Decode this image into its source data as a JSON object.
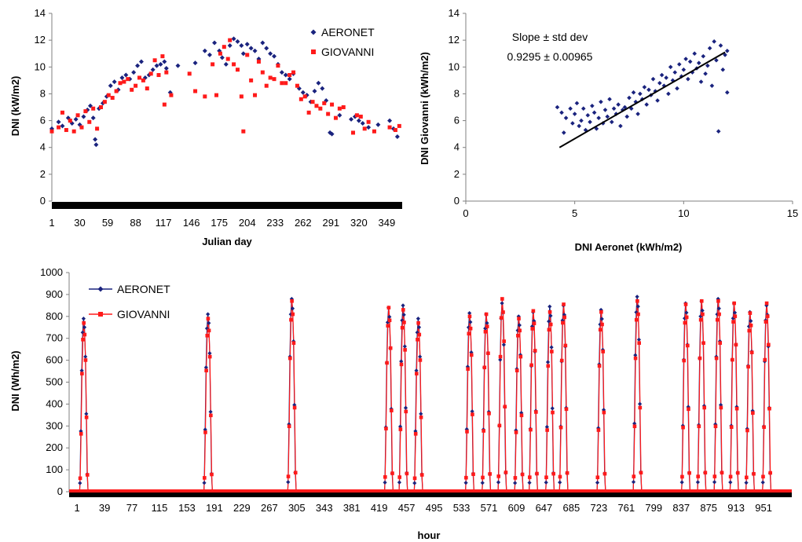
{
  "chart_data": [
    {
      "type": "scatter",
      "xlabel": "Julian day",
      "ylabel": "DNI (kW/m2)",
      "ylim": [
        0,
        14
      ],
      "yticks": [
        0,
        2,
        4,
        6,
        8,
        10,
        12,
        14
      ],
      "xticks": [
        1,
        30,
        59,
        88,
        117,
        146,
        175,
        204,
        233,
        262,
        291,
        320,
        349
      ],
      "xlim": [
        1,
        365
      ],
      "legend_position": "top-right",
      "colors": {
        "AERONET": "#1a237e",
        "GIOVANNI": "#ff1a1a"
      },
      "series": [
        {
          "name": "AERONET",
          "marker": "diamond",
          "points": [
            [
              1,
              5.4
            ],
            [
              8,
              5.9
            ],
            [
              12,
              5.6
            ],
            [
              18,
              6.2
            ],
            [
              22,
              5.8
            ],
            [
              26,
              6.1
            ],
            [
              30,
              5.7
            ],
            [
              34,
              6.3
            ],
            [
              38,
              6.8
            ],
            [
              41,
              7.1
            ],
            [
              44,
              6.2
            ],
            [
              46,
              4.6
            ],
            [
              47,
              4.2
            ],
            [
              50,
              6.9
            ],
            [
              54,
              7.3
            ],
            [
              58,
              7.8
            ],
            [
              62,
              8.6
            ],
            [
              66,
              8.9
            ],
            [
              70,
              8.3
            ],
            [
              74,
              9.2
            ],
            [
              78,
              9.4
            ],
            [
              82,
              9.1
            ],
            [
              86,
              9.6
            ],
            [
              90,
              10.1
            ],
            [
              94,
              10.4
            ],
            [
              98,
              9.2
            ],
            [
              102,
              9.4
            ],
            [
              106,
              9.8
            ],
            [
              110,
              10.1
            ],
            [
              114,
              10.2
            ],
            [
              118,
              10.4
            ],
            [
              120,
              9.9
            ],
            [
              124,
              8.1
            ],
            [
              132,
              10.1
            ],
            [
              150,
              10.3
            ],
            [
              160,
              11.2
            ],
            [
              165,
              10.9
            ],
            [
              170,
              11.8
            ],
            [
              175,
              11.2
            ],
            [
              178,
              10.7
            ],
            [
              182,
              10.2
            ],
            [
              186,
              11.6
            ],
            [
              190,
              12.1
            ],
            [
              194,
              11.9
            ],
            [
              198,
              11.6
            ],
            [
              200,
              11.0
            ],
            [
              204,
              11.7
            ],
            [
              208,
              11.4
            ],
            [
              212,
              11.2
            ],
            [
              216,
              10.6
            ],
            [
              220,
              11.8
            ],
            [
              224,
              11.4
            ],
            [
              228,
              11.0
            ],
            [
              232,
              10.8
            ],
            [
              236,
              10.2
            ],
            [
              240,
              9.6
            ],
            [
              244,
              9.4
            ],
            [
              248,
              9.1
            ],
            [
              252,
              9.5
            ],
            [
              258,
              8.4
            ],
            [
              262,
              8.1
            ],
            [
              266,
              7.9
            ],
            [
              270,
              7.4
            ],
            [
              274,
              8.2
            ],
            [
              278,
              8.8
            ],
            [
              282,
              8.4
            ],
            [
              286,
              7.5
            ],
            [
              290,
              5.1
            ],
            [
              292,
              5.0
            ],
            [
              300,
              6.4
            ],
            [
              312,
              6.1
            ],
            [
              316,
              6.3
            ],
            [
              320,
              6.0
            ],
            [
              324,
              5.8
            ],
            [
              330,
              5.5
            ],
            [
              340,
              5.7
            ],
            [
              352,
              6.0
            ],
            [
              356,
              5.4
            ],
            [
              360,
              4.8
            ]
          ]
        },
        {
          "name": "GIOVANNI",
          "marker": "square",
          "points": [
            [
              1,
              5.2
            ],
            [
              8,
              5.5
            ],
            [
              12,
              6.6
            ],
            [
              16,
              5.3
            ],
            [
              20,
              6.0
            ],
            [
              24,
              5.2
            ],
            [
              28,
              6.4
            ],
            [
              32,
              5.5
            ],
            [
              36,
              6.7
            ],
            [
              40,
              5.9
            ],
            [
              44,
              6.9
            ],
            [
              48,
              5.4
            ],
            [
              52,
              7.0
            ],
            [
              56,
              7.4
            ],
            [
              60,
              7.9
            ],
            [
              64,
              7.7
            ],
            [
              68,
              8.2
            ],
            [
              72,
              8.8
            ],
            [
              76,
              8.9
            ],
            [
              80,
              9.1
            ],
            [
              84,
              8.3
            ],
            [
              88,
              8.6
            ],
            [
              92,
              9.2
            ],
            [
              96,
              9.0
            ],
            [
              100,
              8.4
            ],
            [
              104,
              9.5
            ],
            [
              108,
              10.5
            ],
            [
              112,
              9.4
            ],
            [
              116,
              10.8
            ],
            [
              118,
              7.2
            ],
            [
              120,
              9.6
            ],
            [
              125,
              7.9
            ],
            [
              144,
              9.5
            ],
            [
              150,
              8.2
            ],
            [
              160,
              7.8
            ],
            [
              168,
              10.2
            ],
            [
              172,
              7.9
            ],
            [
              176,
              11.0
            ],
            [
              180,
              11.5
            ],
            [
              184,
              10.6
            ],
            [
              186,
              12.0
            ],
            [
              190,
              10.2
            ],
            [
              194,
              9.8
            ],
            [
              198,
              7.8
            ],
            [
              200,
              5.2
            ],
            [
              204,
              10.9
            ],
            [
              208,
              9.0
            ],
            [
              212,
              7.9
            ],
            [
              216,
              10.4
            ],
            [
              220,
              9.6
            ],
            [
              224,
              8.6
            ],
            [
              228,
              9.2
            ],
            [
              232,
              9.1
            ],
            [
              236,
              10.1
            ],
            [
              240,
              8.8
            ],
            [
              244,
              8.8
            ],
            [
              248,
              9.4
            ],
            [
              252,
              9.6
            ],
            [
              256,
              8.6
            ],
            [
              260,
              7.6
            ],
            [
              264,
              7.8
            ],
            [
              268,
              6.6
            ],
            [
              272,
              7.4
            ],
            [
              276,
              7.1
            ],
            [
              280,
              6.9
            ],
            [
              284,
              7.3
            ],
            [
              288,
              6.5
            ],
            [
              292,
              7.2
            ],
            [
              296,
              6.2
            ],
            [
              300,
              6.9
            ],
            [
              304,
              7.0
            ],
            [
              314,
              5.1
            ],
            [
              318,
              6.4
            ],
            [
              322,
              6.3
            ],
            [
              326,
              5.4
            ],
            [
              330,
              5.9
            ],
            [
              336,
              5.2
            ],
            [
              352,
              5.5
            ],
            [
              358,
              5.3
            ],
            [
              362,
              5.6
            ]
          ]
        }
      ]
    },
    {
      "type": "scatter",
      "xlabel": "DNI Aeronet (kWh/m2)",
      "ylabel": "DNI Giovanni (kWh/m2)",
      "xlim": [
        0,
        15
      ],
      "ylim": [
        0,
        14
      ],
      "xticks": [
        0,
        5,
        10,
        15
      ],
      "yticks": [
        0,
        2,
        4,
        6,
        8,
        10,
        12,
        14
      ],
      "annotations": [
        "Slope ± std dev",
        "0.9295 ± 0.00965"
      ],
      "fit_line": {
        "x": [
          4.3,
          11.9
        ],
        "y": [
          4.0,
          11.1
        ]
      },
      "colors": {
        "points": "#1a237e",
        "fit": "#000000"
      },
      "points": [
        [
          4.2,
          7.0
        ],
        [
          4.4,
          6.6
        ],
        [
          4.5,
          5.1
        ],
        [
          4.6,
          6.2
        ],
        [
          4.8,
          6.9
        ],
        [
          4.9,
          5.8
        ],
        [
          5.0,
          6.5
        ],
        [
          5.1,
          7.3
        ],
        [
          5.2,
          5.6
        ],
        [
          5.3,
          6.0
        ],
        [
          5.4,
          6.9
        ],
        [
          5.5,
          5.3
        ],
        [
          5.6,
          6.4
        ],
        [
          5.7,
          5.9
        ],
        [
          5.8,
          7.1
        ],
        [
          5.9,
          6.6
        ],
        [
          6.0,
          5.4
        ],
        [
          6.1,
          6.2
        ],
        [
          6.2,
          7.4
        ],
        [
          6.3,
          5.8
        ],
        [
          6.4,
          6.8
        ],
        [
          6.5,
          6.3
        ],
        [
          6.6,
          7.6
        ],
        [
          6.7,
          5.9
        ],
        [
          6.8,
          6.9
        ],
        [
          6.9,
          6.5
        ],
        [
          7.0,
          7.2
        ],
        [
          7.1,
          5.6
        ],
        [
          7.2,
          6.8
        ],
        [
          7.3,
          7.0
        ],
        [
          7.4,
          6.3
        ],
        [
          7.5,
          7.7
        ],
        [
          7.6,
          6.9
        ],
        [
          7.7,
          8.1
        ],
        [
          7.8,
          7.4
        ],
        [
          7.9,
          6.5
        ],
        [
          8.0,
          8.0
        ],
        [
          8.1,
          7.6
        ],
        [
          8.2,
          8.5
        ],
        [
          8.3,
          7.2
        ],
        [
          8.4,
          8.3
        ],
        [
          8.5,
          7.9
        ],
        [
          8.6,
          9.1
        ],
        [
          8.7,
          8.2
        ],
        [
          8.8,
          7.5
        ],
        [
          8.9,
          8.8
        ],
        [
          9.0,
          9.4
        ],
        [
          9.1,
          8.6
        ],
        [
          9.2,
          9.2
        ],
        [
          9.3,
          8.0
        ],
        [
          9.4,
          10.0
        ],
        [
          9.5,
          9.0
        ],
        [
          9.6,
          9.6
        ],
        [
          9.7,
          8.4
        ],
        [
          9.8,
          10.2
        ],
        [
          9.9,
          9.3
        ],
        [
          10.0,
          9.8
        ],
        [
          10.1,
          10.6
        ],
        [
          10.2,
          9.1
        ],
        [
          10.3,
          10.4
        ],
        [
          10.4,
          9.6
        ],
        [
          10.5,
          11.0
        ],
        [
          10.6,
          9.9
        ],
        [
          10.7,
          10.3
        ],
        [
          10.8,
          8.9
        ],
        [
          10.9,
          10.8
        ],
        [
          11.0,
          9.5
        ],
        [
          11.1,
          10.1
        ],
        [
          11.2,
          11.4
        ],
        [
          11.3,
          8.6
        ],
        [
          11.4,
          11.9
        ],
        [
          11.5,
          10.5
        ],
        [
          11.6,
          5.2
        ],
        [
          11.7,
          11.6
        ],
        [
          11.8,
          9.8
        ],
        [
          11.9,
          10.9
        ],
        [
          12.0,
          8.1
        ],
        [
          12.0,
          11.2
        ]
      ]
    },
    {
      "type": "line",
      "xlabel": "hour",
      "ylabel": "DNI (Wh/m2)",
      "ylim": [
        0,
        1000
      ],
      "yticks": [
        0,
        100,
        200,
        300,
        400,
        500,
        600,
        700,
        800,
        900,
        1000
      ],
      "xticks": [
        1,
        39,
        77,
        115,
        153,
        191,
        229,
        267,
        305,
        343,
        381,
        419,
        457,
        495,
        533,
        571,
        609,
        647,
        685,
        723,
        761,
        799,
        837,
        875,
        913,
        951
      ],
      "xlim": [
        -10,
        990
      ],
      "legend_position": "top-left",
      "colors": {
        "AERONET": "#1a237e",
        "GIOVANNI": "#ff1a1a"
      },
      "events": [
        {
          "x": 10,
          "a": 790,
          "g": 770
        },
        {
          "x": 182,
          "a": 810,
          "g": 790
        },
        {
          "x": 298,
          "a": 880,
          "g": 870
        },
        {
          "x": 432,
          "a": 840,
          "g": 840
        },
        {
          "x": 452,
          "a": 850,
          "g": 830
        },
        {
          "x": 473,
          "a": 790,
          "g": 770
        },
        {
          "x": 544,
          "a": 815,
          "g": 800
        },
        {
          "x": 567,
          "a": 810,
          "g": 810
        },
        {
          "x": 589,
          "a": 860,
          "g": 880
        },
        {
          "x": 612,
          "a": 800,
          "g": 790
        },
        {
          "x": 632,
          "a": 820,
          "g": 825
        },
        {
          "x": 655,
          "a": 845,
          "g": 820
        },
        {
          "x": 674,
          "a": 850,
          "g": 855
        },
        {
          "x": 726,
          "a": 830,
          "g": 820
        },
        {
          "x": 776,
          "a": 890,
          "g": 870
        },
        {
          "x": 843,
          "a": 860,
          "g": 855
        },
        {
          "x": 865,
          "a": 870,
          "g": 870
        },
        {
          "x": 888,
          "a": 880,
          "g": 870
        },
        {
          "x": 910,
          "a": 860,
          "g": 860
        },
        {
          "x": 932,
          "a": 820,
          "g": 815
        },
        {
          "x": 955,
          "a": 850,
          "g": 860
        }
      ],
      "series": [
        {
          "name": "AERONET",
          "marker": "diamond"
        },
        {
          "name": "GIOVANNI",
          "marker": "square"
        }
      ]
    }
  ]
}
